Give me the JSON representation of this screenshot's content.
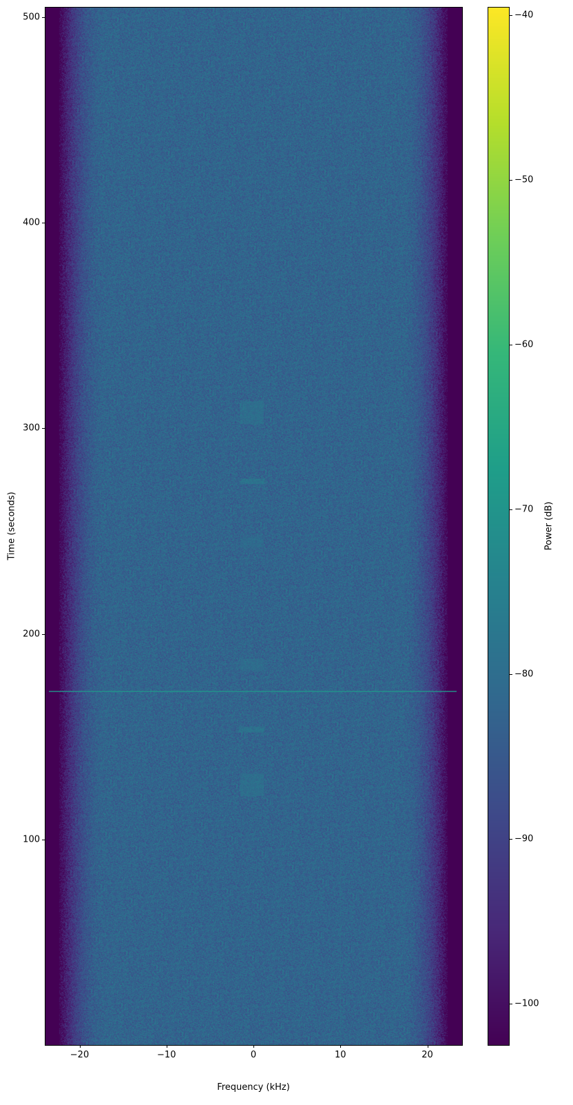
{
  "chart_data": {
    "type": "heatmap",
    "title": "",
    "xlabel": "Frequency (kHz)",
    "ylabel": "Time (seconds)",
    "xlim": [
      -24,
      24
    ],
    "ylim": [
      0,
      505
    ],
    "xticks": [
      -20,
      -10,
      0,
      10,
      20
    ],
    "xtick_labels": [
      "−20",
      "−10",
      "0",
      "10",
      "20"
    ],
    "yticks": [
      100,
      200,
      300,
      400,
      500
    ],
    "ytick_labels": [
      "100",
      "200",
      "300",
      "400",
      "500"
    ],
    "colormap": "viridis",
    "colorbar": {
      "label": "Power (dB)",
      "range": [
        -102.5,
        -39.5
      ],
      "ticks": [
        -40,
        -50,
        -60,
        -70,
        -80,
        -90,
        -100
      ],
      "tick_labels": [
        "−40",
        "−50",
        "−60",
        "−70",
        "−80",
        "−90",
        "−100"
      ]
    },
    "noise_floor_db": -82,
    "passband_khz": [
      -17,
      17
    ],
    "edge_floor_db": -102,
    "features": [
      {
        "kind": "horizontal-line",
        "time": 172,
        "freq_range": [
          -24,
          24
        ],
        "power_db": -70
      },
      {
        "kind": "burst",
        "time_range": [
          302,
          313
        ],
        "freq_range": [
          -1.5,
          1.2
        ],
        "power_db": -77
      },
      {
        "kind": "burst",
        "time_range": [
          273,
          275.5
        ],
        "freq_range": [
          -1.5,
          1.3
        ],
        "power_db": -74
      },
      {
        "kind": "burst",
        "time_range": [
          242,
          247
        ],
        "freq_range": [
          -1.5,
          1.2
        ],
        "power_db": -79
      },
      {
        "kind": "burst",
        "time_range": [
          182,
          188
        ],
        "freq_range": [
          -1.5,
          1.2
        ],
        "power_db": -78
      },
      {
        "kind": "burst",
        "time_range": [
          152,
          155
        ],
        "freq_range": [
          -1.7,
          1.2
        ],
        "power_db": -75
      },
      {
        "kind": "burst",
        "time_range": [
          121,
          132
        ],
        "freq_range": [
          -1.5,
          1.2
        ],
        "power_db": -77
      },
      {
        "kind": "tone",
        "freq": 10,
        "time_range": [
          0,
          100
        ],
        "power_db": -78
      }
    ]
  }
}
